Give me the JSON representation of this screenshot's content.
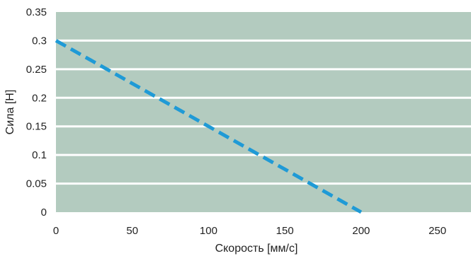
{
  "chart_data": {
    "type": "line",
    "xlabel": "Скорость [мм/с]",
    "ylabel": "Сила [Н]",
    "xlim": [
      0,
      272
    ],
    "ylim": [
      0,
      0.35
    ],
    "x_ticks": [
      "0",
      "50",
      "100",
      "150",
      "200",
      "250"
    ],
    "x_tick_values": [
      0,
      50,
      100,
      150,
      200,
      250
    ],
    "y_ticks": [
      "0",
      "0.05",
      "0.1",
      "0.15",
      "0.2",
      "0.25",
      "0.3",
      "0.35"
    ],
    "y_tick_values": [
      0,
      0.05,
      0.1,
      0.15,
      0.2,
      0.25,
      0.3,
      0.35
    ],
    "grid": true,
    "series": [
      {
        "x": [
          0,
          200
        ],
        "y": [
          0.3,
          0
        ],
        "style": "dashed"
      }
    ]
  },
  "colors": {
    "plot_background": "#b3cbbf",
    "gridline": "#ffffff",
    "series_line": "#1f9ad6"
  }
}
